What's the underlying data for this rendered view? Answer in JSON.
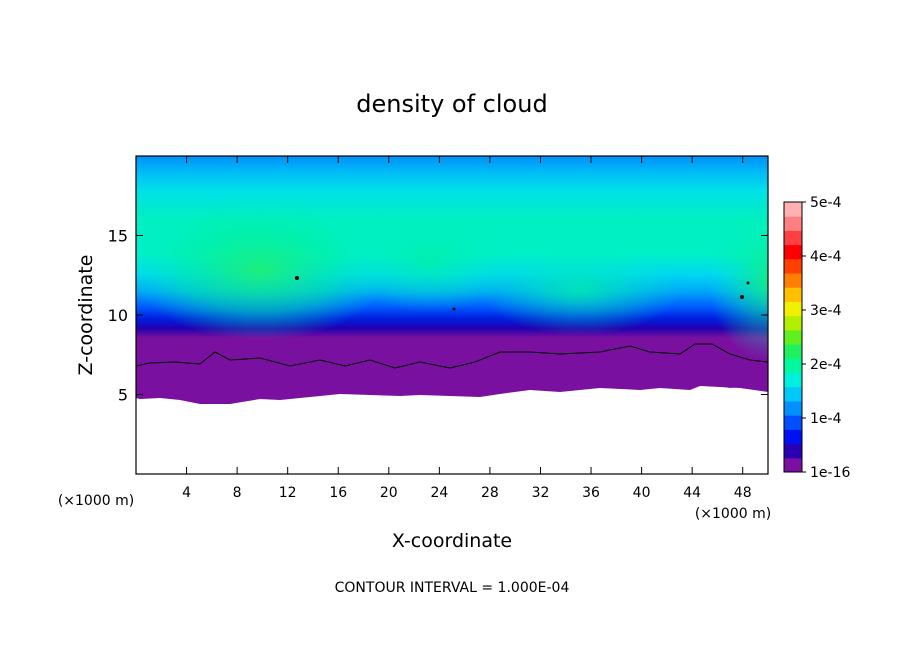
{
  "chart_data": {
    "type": "heatmap",
    "title": "density of cloud",
    "xlabel": "X-coordinate",
    "ylabel": "Z-coordinate",
    "x_unit_label": "(×1000 m)",
    "y_unit_label": "(×1000 m)",
    "xlim": [
      0,
      50
    ],
    "ylim": [
      0,
      20
    ],
    "x_ticks": [
      4,
      8,
      12,
      16,
      20,
      24,
      28,
      32,
      36,
      40,
      44,
      48
    ],
    "y_ticks": [
      5,
      10,
      15
    ],
    "colorbar": {
      "min": 1e-16,
      "max": 0.0005,
      "tick_values": [
        1e-16,
        0.0001,
        0.0002,
        0.0003,
        0.0004,
        0.0005
      ],
      "tick_labels": [
        "1e-16",
        "1e-4",
        "2e-4",
        "3e-4",
        "4e-4",
        "5e-4"
      ],
      "colors": [
        "#7a0fa0",
        "#2a00b4",
        "#0010f0",
        "#0050ff",
        "#0090ff",
        "#00c8f8",
        "#00f0e0",
        "#00f8a0",
        "#20f060",
        "#60f020",
        "#b0f000",
        "#f0f000",
        "#ffc000",
        "#ff8000",
        "#ff4000",
        "#ff0000",
        "#ff4040",
        "#ff8080",
        "#ffb0b0"
      ]
    },
    "cloud_base_km": 5,
    "contour_interval_text": "CONTOUR INTERVAL = 1.000E-04",
    "grid": false
  }
}
